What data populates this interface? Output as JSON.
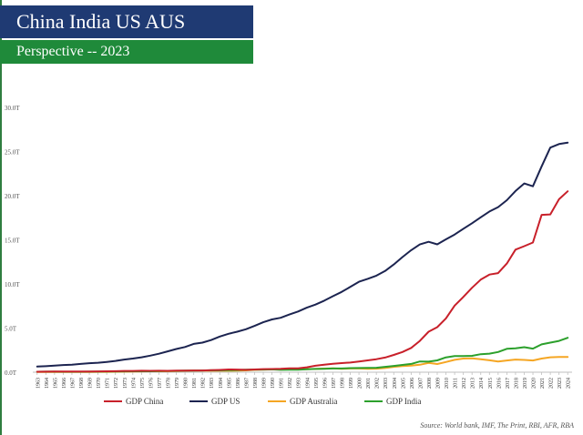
{
  "header": {
    "title": "China India US AUS",
    "subtitle": "Perspective -- 2023",
    "title_bg": "#1f3a73",
    "subtitle_bg": "#1f8a3a"
  },
  "source": "Source: World bank, IMF, The Print, RBI, AFR, RBA",
  "chart_data": {
    "type": "line",
    "title": "China India US AUS",
    "xlabel": "",
    "ylabel": "",
    "ylim": [
      0,
      30
    ],
    "grid": false,
    "legend": "bottom",
    "y_ticks": [
      {
        "value": 0,
        "label": "0.0T"
      },
      {
        "value": 5,
        "label": "5.0T"
      },
      {
        "value": 10,
        "label": "10.0T"
      },
      {
        "value": 15,
        "label": "15.0T"
      },
      {
        "value": 20,
        "label": "20.0T"
      },
      {
        "value": 25,
        "label": "25.0T"
      },
      {
        "value": 30,
        "label": "30.0T"
      }
    ],
    "x": [
      "1963",
      "1964",
      "1965",
      "1966",
      "1967",
      "1968",
      "1969",
      "1970",
      "1971",
      "1972",
      "1973",
      "1974",
      "1975",
      "1976",
      "1977",
      "1978",
      "1979",
      "1980",
      "1981",
      "1982",
      "1983",
      "1984",
      "1985",
      "1986",
      "1987",
      "1988",
      "1989",
      "1990",
      "1991",
      "1992",
      "1993",
      "1994",
      "1995",
      "1996",
      "1997",
      "1998",
      "1999",
      "2000",
      "2001",
      "2002",
      "2003",
      "2004",
      "2005",
      "2006",
      "2007",
      "2008",
      "2009",
      "2010",
      "2011",
      "2012",
      "2013",
      "2014",
      "2015",
      "2016",
      "2017",
      "2018",
      "2019",
      "2020",
      "2021",
      "2022",
      "2023",
      "2024"
    ],
    "series": [
      {
        "name": "GDP China",
        "color": "#c8202a",
        "values": [
          0.05,
          0.06,
          0.07,
          0.08,
          0.07,
          0.07,
          0.08,
          0.09,
          0.1,
          0.11,
          0.14,
          0.14,
          0.16,
          0.15,
          0.17,
          0.15,
          0.18,
          0.19,
          0.2,
          0.2,
          0.23,
          0.26,
          0.31,
          0.3,
          0.27,
          0.31,
          0.35,
          0.36,
          0.38,
          0.43,
          0.44,
          0.56,
          0.73,
          0.86,
          0.96,
          1.03,
          1.09,
          1.21,
          1.34,
          1.47,
          1.66,
          1.96,
          2.29,
          2.75,
          3.55,
          4.59,
          5.1,
          6.09,
          7.55,
          8.53,
          9.57,
          10.48,
          11.06,
          11.23,
          12.31,
          13.89,
          14.28,
          14.69,
          17.82,
          17.88,
          19.6,
          20.5
        ]
      },
      {
        "name": "GDP US",
        "color": "#1c2450",
        "values": [
          0.64,
          0.68,
          0.74,
          0.81,
          0.86,
          0.94,
          1.02,
          1.07,
          1.16,
          1.28,
          1.43,
          1.55,
          1.69,
          1.88,
          2.09,
          2.36,
          2.63,
          2.86,
          3.21,
          3.35,
          3.64,
          4.04,
          4.35,
          4.59,
          4.87,
          5.25,
          5.66,
          5.98,
          6.17,
          6.54,
          6.88,
          7.31,
          7.66,
          8.1,
          8.61,
          9.09,
          9.66,
          10.25,
          10.58,
          10.94,
          11.46,
          12.21,
          13.04,
          13.82,
          14.47,
          14.77,
          14.48,
          15.05,
          15.6,
          16.25,
          16.88,
          17.55,
          18.21,
          18.7,
          19.48,
          20.53,
          21.38,
          21.06,
          23.32,
          25.44,
          25.85,
          26.0
        ]
      },
      {
        "name": "GDP Australia",
        "color": "#f5a623",
        "values": [
          0.02,
          0.02,
          0.02,
          0.03,
          0.03,
          0.03,
          0.03,
          0.04,
          0.04,
          0.05,
          0.06,
          0.08,
          0.09,
          0.1,
          0.1,
          0.11,
          0.12,
          0.15,
          0.18,
          0.18,
          0.17,
          0.19,
          0.17,
          0.18,
          0.21,
          0.27,
          0.3,
          0.31,
          0.33,
          0.33,
          0.31,
          0.35,
          0.37,
          0.41,
          0.43,
          0.39,
          0.42,
          0.42,
          0.38,
          0.4,
          0.47,
          0.61,
          0.69,
          0.75,
          0.85,
          1.05,
          0.93,
          1.15,
          1.4,
          1.55,
          1.58,
          1.47,
          1.35,
          1.21,
          1.33,
          1.43,
          1.39,
          1.33,
          1.55,
          1.69,
          1.72,
          1.72
        ]
      },
      {
        "name": "GDP India",
        "color": "#2ca02c",
        "values": [
          0.05,
          0.06,
          0.06,
          0.05,
          0.05,
          0.05,
          0.06,
          0.06,
          0.07,
          0.07,
          0.09,
          0.1,
          0.1,
          0.1,
          0.12,
          0.14,
          0.15,
          0.19,
          0.19,
          0.2,
          0.22,
          0.21,
          0.23,
          0.25,
          0.28,
          0.3,
          0.3,
          0.32,
          0.27,
          0.29,
          0.28,
          0.33,
          0.37,
          0.39,
          0.42,
          0.42,
          0.46,
          0.47,
          0.49,
          0.51,
          0.61,
          0.71,
          0.82,
          0.94,
          1.22,
          1.2,
          1.34,
          1.68,
          1.82,
          1.83,
          1.86,
          2.04,
          2.1,
          2.29,
          2.65,
          2.7,
          2.84,
          2.67,
          3.15,
          3.35,
          3.55,
          3.9
        ]
      }
    ]
  }
}
